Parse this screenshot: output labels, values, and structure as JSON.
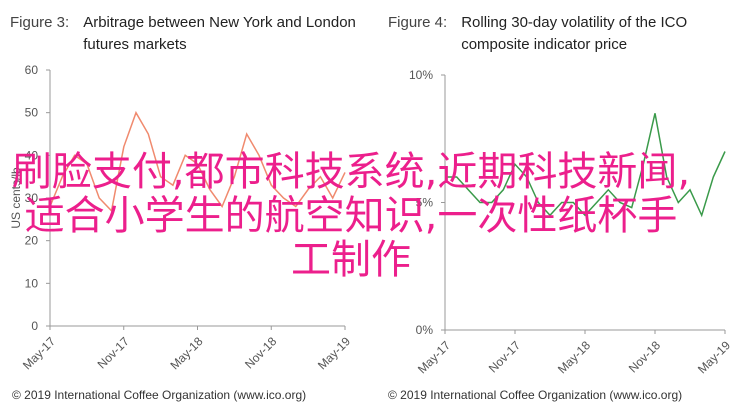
{
  "chart_data": [
    {
      "type": "line",
      "figure": "Figure 3:",
      "title": "Arbitrage between New York and London futures markets",
      "ylabel": "US cents/lb",
      "categories": [
        "May-17",
        null,
        null,
        null,
        null,
        null,
        "Nov-17",
        null,
        null,
        null,
        null,
        null,
        "May-18",
        null,
        null,
        null,
        null,
        null,
        "Nov-18",
        null,
        null,
        null,
        null,
        null,
        "May-19"
      ],
      "series": [
        {
          "name": "Arbitrage",
          "color": "#f08a6e",
          "values": [
            28,
            35,
            40,
            38,
            30,
            27,
            42,
            50,
            45,
            35,
            33,
            40,
            38,
            32,
            28,
            35,
            45,
            40,
            33,
            30,
            28,
            32,
            35,
            30,
            36
          ]
        }
      ],
      "ylim": [
        0,
        60
      ],
      "yticks": [
        0,
        10,
        20,
        30,
        40,
        50,
        60
      ],
      "source": "© 2019 International Coffee Organization (www.ico.org)"
    },
    {
      "type": "line",
      "figure": "Figure 4:",
      "title": "Rolling 30-day volatility of the ICO composite indicator price",
      "categories": [
        "May-17",
        null,
        null,
        null,
        null,
        null,
        "Nov-17",
        null,
        null,
        null,
        null,
        null,
        "May-18",
        null,
        null,
        null,
        null,
        null,
        "Nov-18",
        null,
        null,
        null,
        null,
        null,
        "May-19"
      ],
      "series": [
        {
          "name": "Volatility",
          "color": "#3a9a4a",
          "values": [
            6,
            6,
            5.5,
            5,
            5,
            5.5,
            6.5,
            6,
            5,
            4.5,
            5,
            5,
            4.5,
            5,
            5.5,
            5,
            4.8,
            6.5,
            8.5,
            6,
            5,
            5.5,
            4.5,
            6,
            7
          ]
        }
      ],
      "ylim": [
        0,
        10
      ],
      "yticks": [
        {
          "value": 0,
          "label": "0%"
        },
        {
          "value": 5,
          "label": "5%"
        },
        {
          "value": 10,
          "label": "10%"
        }
      ],
      "source": "© 2019 International Coffee Organization (www.ico.org)"
    }
  ],
  "overlay": {
    "text": "刷脸支付,都市科技系统,近期科技新闻,适合小学生的航空知识,一次性纸杯手工制作"
  }
}
